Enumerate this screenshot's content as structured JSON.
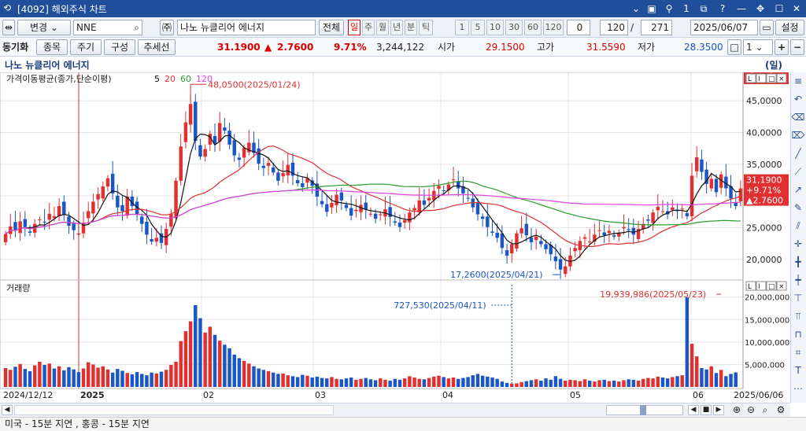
{
  "window": {
    "title": "[4092] 해외주식 차트"
  },
  "toolbar": {
    "change_label": "변경",
    "symbol_value": "NNE",
    "stock_name": "나노 뉴클리어 에너지",
    "all_label": "전체",
    "periods": [
      "일",
      "주",
      "월",
      "년",
      "분",
      "틱"
    ],
    "intervals": [
      "1",
      "5",
      "10",
      "30",
      "60",
      "120"
    ],
    "zero_value": "0",
    "count_value": "120",
    "slash": "/",
    "total_value": "271",
    "date_value": "2025/06/07",
    "settings_label": "설정"
  },
  "toolbar2": {
    "sync_label": "동기화",
    "symbol_btn": "종목",
    "period_btn": "주기",
    "compose_btn": "구성",
    "trend_btn": "추세선",
    "price": "31.1900",
    "change_arrow": "▲",
    "change": "2.7600",
    "change_pct": "9.71%",
    "volume": "3,244,122",
    "open_label": "시가",
    "open": "29.1500",
    "high_label": "고가",
    "high": "31.5590",
    "low_label": "저가",
    "low": "28.3500",
    "multi_value": "1"
  },
  "namebar": {
    "name": "나노 뉴클리어 에너지",
    "period": "(일)"
  },
  "chart_data": {
    "type": "candlestick",
    "price_panel": {
      "legend_title": "가격이동평균(종가,단순이평)",
      "ma": [
        {
          "period": "5",
          "color": "#111111"
        },
        {
          "period": "20",
          "color": "#e03030"
        },
        {
          "period": "60",
          "color": "#2a9a2a"
        },
        {
          "period": "120",
          "color": "#e040e0"
        }
      ],
      "ylim": [
        17,
        48.5
      ],
      "y_ticks": [
        "20,0000",
        "25,0000",
        "30,0000",
        "35,0000",
        "40,0000",
        "45,0000"
      ],
      "y_tick_values": [
        20,
        25,
        30,
        35,
        40,
        45
      ],
      "last_price_box": {
        "price": "31,1900",
        "pct": "+9.71%",
        "change": "▲2.7600"
      },
      "high_annotation": "48,0500(2025/01/24)",
      "low_annotation": "17,2600(2025/04/21)"
    },
    "volume_panel": {
      "title": "거래량",
      "ylim": [
        0,
        21000000
      ],
      "y_ticks": [
        "5,000,000",
        "10,000,000",
        "15,000,000",
        "20,000,000"
      ],
      "y_tick_values": [
        5000000,
        10000000,
        15000000,
        20000000
      ],
      "last_volume": "3,244,122",
      "max_annotation": "19,939,986(2025/05/23)",
      "cursor_annotation": "727,530(2025/04/11)"
    },
    "x_labels": [
      "2024/12/12",
      "2025",
      "02",
      "03",
      "04",
      "05",
      "06",
      "2025/06/06"
    ],
    "closes": [
      24.0,
      25.2,
      24.5,
      26.0,
      25.1,
      24.2,
      25.6,
      26.3,
      25.9,
      27.2,
      26.8,
      28.4,
      27.1,
      25.3,
      24.6,
      24.1,
      25.8,
      27.6,
      29.1,
      30.3,
      31.5,
      32.8,
      30.4,
      28.2,
      27.6,
      29.9,
      28.4,
      27.1,
      25.6,
      23.9,
      22.8,
      23.4,
      22.6,
      24.8,
      27.2,
      32.4,
      37.8,
      41.6,
      44.5,
      38.7,
      36.2,
      37.4,
      39.8,
      38.2,
      41.5,
      40.3,
      38.1,
      36.4,
      35.7,
      37.6,
      38.4,
      36.8,
      35.1,
      34.4,
      35.2,
      33.7,
      32.4,
      33.6,
      34.9,
      33.2,
      32.0,
      31.4,
      32.8,
      31.6,
      29.9,
      28.7,
      27.5,
      28.9,
      30.2,
      29.3,
      28.1,
      26.9,
      27.8,
      28.6,
      27.9,
      27.2,
      26.4,
      27.1,
      27.9,
      26.7,
      25.8,
      25.1,
      26.2,
      27.4,
      28.1,
      29.3,
      28.6,
      29.7,
      30.8,
      31.6,
      30.9,
      31.8,
      32.6,
      31.2,
      30.4,
      29.6,
      28.2,
      27.1,
      26.4,
      25.1,
      24.2,
      23.4,
      21.8,
      20.6,
      22.4,
      24.1,
      24.9,
      23.8,
      22.7,
      23.6,
      22.4,
      21.6,
      20.8,
      19.7,
      18.4,
      18.9,
      20.6,
      21.8,
      22.9,
      23.5,
      22.8,
      23.9,
      24.6,
      23.8,
      24.5,
      23.6,
      24.2,
      25.1,
      24.6,
      23.9,
      24.8,
      25.6,
      26.1,
      27.4,
      28.3,
      27.6,
      27.1,
      28.2,
      27.6,
      28.0,
      26.8,
      33.2,
      36.1,
      33.8,
      31.9,
      32.7,
      30.6,
      33.4,
      31.2,
      29.6,
      28.4,
      31.19
    ],
    "volumes_m": [
      4.2,
      3.8,
      4.5,
      5.1,
      4.0,
      3.5,
      4.8,
      5.6,
      4.9,
      5.2,
      4.1,
      4.6,
      3.7,
      4.4,
      3.9,
      3.3,
      4.1,
      5.5,
      5.0,
      4.3,
      4.6,
      3.9,
      3.2,
      4.0,
      3.6,
      3.1,
      2.8,
      3.3,
      2.9,
      2.6,
      3.2,
      3.0,
      3.4,
      3.8,
      4.9,
      5.6,
      10.2,
      12.4,
      14.6,
      18.2,
      15.3,
      12.1,
      13.4,
      11.6,
      10.3,
      9.4,
      8.6,
      7.2,
      6.4,
      5.8,
      5.2,
      4.6,
      4.1,
      3.8,
      3.5,
      3.2,
      2.9,
      3.0,
      2.6,
      2.4,
      2.2,
      2.7,
      2.5,
      2.1,
      2.3,
      2.0,
      1.9,
      2.2,
      1.8,
      1.7,
      1.9,
      2.1,
      1.6,
      1.8,
      2.0,
      1.7,
      1.5,
      1.9,
      1.6,
      1.4,
      1.8,
      1.6,
      1.9,
      2.4,
      2.1,
      1.8,
      1.7,
      2.0,
      2.3,
      2.5,
      2.2,
      1.9,
      2.1,
      1.8,
      2.0,
      2.2,
      2.6,
      2.9,
      2.5,
      2.3,
      2.1,
      1.8,
      1.2,
      0.9,
      0.73,
      0.8,
      1.1,
      1.3,
      1.5,
      1.7,
      1.4,
      1.9,
      1.6,
      2.4,
      1.8,
      1.4,
      1.6,
      1.5,
      1.3,
      1.7,
      1.4,
      1.2,
      1.5,
      1.6,
      1.3,
      1.4,
      1.2,
      1.5,
      1.7,
      1.6,
      1.4,
      1.8,
      2.0,
      1.9,
      2.3,
      2.1,
      1.9,
      2.2,
      2.4,
      2.6,
      19.94,
      9.6,
      6.8,
      4.2,
      3.9,
      4.6,
      3.1,
      3.8,
      2.4,
      2.9,
      3.24
    ]
  },
  "statusbar": {
    "text": "미국 - 15분 지연   , 홍콩 - 15분 지연"
  }
}
